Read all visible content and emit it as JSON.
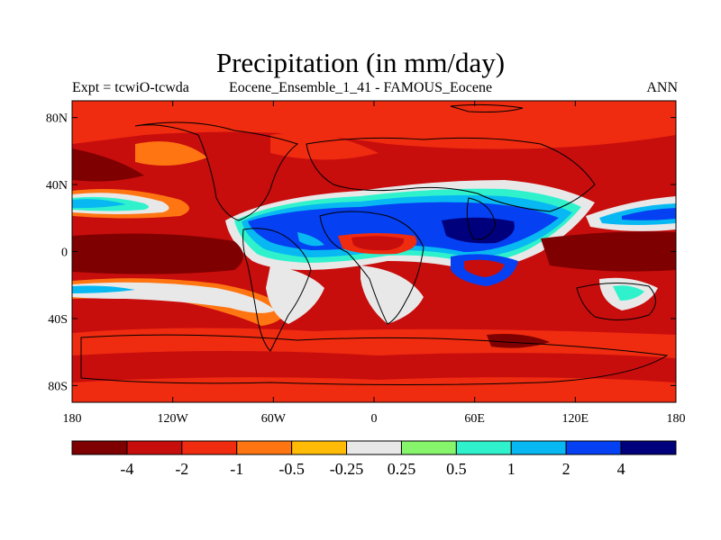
{
  "title": "Precipitation (in mm/day)",
  "subtitle_left": "Expt = tcwiO-tcwda",
  "subtitle_center": "Eocene_Ensemble_1_41 - FAMOUS_Eocene",
  "subtitle_right": "ANN",
  "lat_ticks": [
    "80N",
    "40N",
    "0",
    "40S",
    "80S"
  ],
  "lon_ticks": [
    "180",
    "120W",
    "60W",
    "0",
    "60E",
    "120E",
    "180"
  ],
  "colorbar": {
    "colors": [
      "#7f0000",
      "#c80d0d",
      "#ef2b10",
      "#ff7512",
      "#ffbb05",
      "#e8e8e8",
      "#86f56b",
      "#2ff2cc",
      "#08b8f2",
      "#0540f2",
      "#00007c"
    ],
    "labels": [
      "-4",
      "-2",
      "-1",
      "-0.5",
      "-0.25",
      "0.25",
      "0.5",
      "1",
      "2",
      "4"
    ]
  },
  "palette": {
    "dark_red": "#7f0000",
    "red": "#c80d0d",
    "orange_red": "#ef2b10",
    "orange": "#ff7512",
    "yellow": "#ffbb05",
    "neutral": "#e8e8e8",
    "green": "#86f56b",
    "teal": "#2ff2cc",
    "light_blue": "#08b8f2",
    "blue": "#0540f2",
    "navy": "#00007c"
  }
}
